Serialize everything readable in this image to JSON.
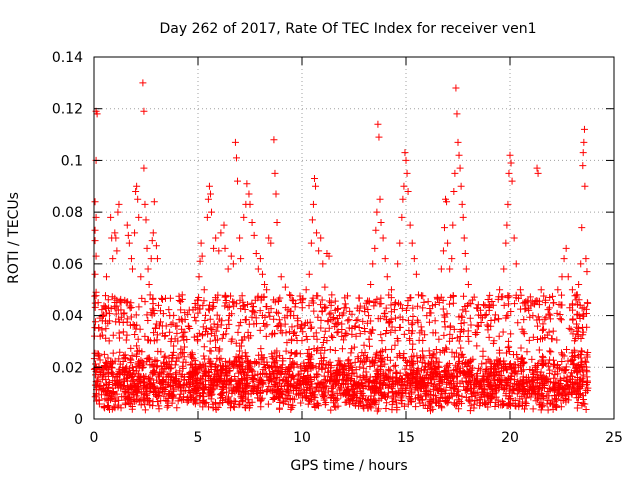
{
  "chart_data": {
    "type": "scatter",
    "title": "Day 262 of 2017, Rate Of TEC Index for receiver ven1",
    "xlabel": "GPS time / hours",
    "ylabel": "ROTI / TECUs",
    "xlim": [
      0,
      25
    ],
    "ylim": [
      0,
      0.14
    ],
    "xticks": [
      "0",
      "5",
      "10",
      "15",
      "20",
      "25"
    ],
    "yticks": [
      "0",
      "0.02",
      "0.04",
      "0.06",
      "0.08",
      "0.1",
      "0.12",
      "0.14"
    ],
    "grid": true,
    "marker": "plus",
    "color": "#ff0000",
    "x_data_range": [
      0,
      23.75
    ],
    "baseline_band": [
      0.003,
      0.03
    ],
    "series": [
      {
        "points": [
          [
            0.1,
            0.119
          ],
          [
            0.15,
            0.118
          ],
          [
            0.1,
            0.1
          ],
          [
            0.05,
            0.084
          ],
          [
            0.1,
            0.078
          ],
          [
            0.05,
            0.073
          ],
          [
            0.05,
            0.069
          ],
          [
            0.1,
            0.063
          ],
          [
            0.05,
            0.056
          ],
          [
            0.1,
            0.049
          ],
          [
            0.2,
            0.045
          ],
          [
            0.4,
            0.038
          ],
          [
            0.3,
            0.032
          ],
          [
            0.45,
            0.04
          ],
          [
            0.5,
            0.025
          ],
          [
            0.6,
            0.055
          ],
          [
            0.7,
            0.043
          ],
          [
            0.8,
            0.078
          ],
          [
            0.85,
            0.07
          ],
          [
            0.9,
            0.062
          ],
          [
            1.0,
            0.072
          ],
          [
            1.05,
            0.07
          ],
          [
            1.1,
            0.065
          ],
          [
            1.15,
            0.08
          ],
          [
            1.2,
            0.083
          ],
          [
            1.3,
            0.045
          ],
          [
            1.45,
            0.041
          ],
          [
            1.6,
            0.075
          ],
          [
            1.65,
            0.071
          ],
          [
            1.7,
            0.068
          ],
          [
            1.8,
            0.062
          ],
          [
            1.85,
            0.058
          ],
          [
            1.95,
            0.072
          ],
          [
            2.0,
            0.088
          ],
          [
            2.05,
            0.09
          ],
          [
            2.1,
            0.085
          ],
          [
            2.15,
            0.078
          ],
          [
            2.25,
            0.055
          ],
          [
            2.35,
            0.13
          ],
          [
            2.4,
            0.119
          ],
          [
            2.4,
            0.097
          ],
          [
            2.45,
            0.083
          ],
          [
            2.5,
            0.077
          ],
          [
            2.55,
            0.066
          ],
          [
            2.6,
            0.058
          ],
          [
            2.65,
            0.052
          ],
          [
            2.7,
            0.048
          ],
          [
            2.75,
            0.062
          ],
          [
            2.8,
            0.069
          ],
          [
            2.85,
            0.072
          ],
          [
            2.9,
            0.084
          ],
          [
            3.0,
            0.067
          ],
          [
            3.05,
            0.062
          ],
          [
            3.15,
            0.036
          ],
          [
            3.4,
            0.032
          ],
          [
            3.7,
            0.03
          ],
          [
            3.9,
            0.031
          ],
          [
            4.3,
            0.032
          ],
          [
            4.6,
            0.035
          ],
          [
            4.9,
            0.038
          ],
          [
            5.0,
            0.046
          ],
          [
            5.05,
            0.055
          ],
          [
            5.1,
            0.061
          ],
          [
            5.15,
            0.068
          ],
          [
            5.2,
            0.063
          ],
          [
            5.3,
            0.05
          ],
          [
            5.45,
            0.078
          ],
          [
            5.5,
            0.085
          ],
          [
            5.55,
            0.09
          ],
          [
            5.6,
            0.087
          ],
          [
            5.65,
            0.08
          ],
          [
            5.75,
            0.066
          ],
          [
            5.85,
            0.07
          ],
          [
            6.0,
            0.065
          ],
          [
            6.1,
            0.072
          ],
          [
            6.25,
            0.075
          ],
          [
            6.3,
            0.066
          ],
          [
            6.45,
            0.058
          ],
          [
            6.6,
            0.063
          ],
          [
            6.7,
            0.06
          ],
          [
            6.8,
            0.107
          ],
          [
            6.85,
            0.101
          ],
          [
            6.9,
            0.092
          ],
          [
            7.0,
            0.07
          ],
          [
            7.05,
            0.062
          ],
          [
            7.2,
            0.078
          ],
          [
            7.3,
            0.083
          ],
          [
            7.35,
            0.091
          ],
          [
            7.45,
            0.087
          ],
          [
            7.5,
            0.083
          ],
          [
            7.6,
            0.076
          ],
          [
            7.7,
            0.071
          ],
          [
            7.8,
            0.064
          ],
          [
            7.9,
            0.058
          ],
          [
            8.0,
            0.062
          ],
          [
            8.1,
            0.056
          ],
          [
            8.2,
            0.052
          ],
          [
            8.3,
            0.05
          ],
          [
            8.4,
            0.07
          ],
          [
            8.5,
            0.068
          ],
          [
            8.65,
            0.108
          ],
          [
            8.7,
            0.095
          ],
          [
            8.75,
            0.087
          ],
          [
            8.8,
            0.076
          ],
          [
            9.0,
            0.055
          ],
          [
            9.2,
            0.051
          ],
          [
            9.4,
            0.048
          ],
          [
            9.6,
            0.04
          ],
          [
            9.8,
            0.038
          ],
          [
            10.0,
            0.045
          ],
          [
            10.2,
            0.05
          ],
          [
            10.35,
            0.056
          ],
          [
            10.45,
            0.068
          ],
          [
            10.5,
            0.077
          ],
          [
            10.55,
            0.083
          ],
          [
            10.6,
            0.093
          ],
          [
            10.65,
            0.09
          ],
          [
            10.7,
            0.072
          ],
          [
            10.8,
            0.065
          ],
          [
            10.9,
            0.07
          ],
          [
            11.0,
            0.06
          ],
          [
            11.1,
            0.051
          ],
          [
            11.2,
            0.064
          ],
          [
            11.3,
            0.063
          ],
          [
            11.4,
            0.045
          ],
          [
            11.6,
            0.042
          ],
          [
            11.8,
            0.04
          ],
          [
            12.0,
            0.041
          ],
          [
            12.2,
            0.038
          ],
          [
            12.4,
            0.035
          ],
          [
            12.6,
            0.032
          ],
          [
            12.8,
            0.033
          ],
          [
            13.0,
            0.035
          ],
          [
            13.2,
            0.04
          ],
          [
            13.3,
            0.052
          ],
          [
            13.4,
            0.06
          ],
          [
            13.5,
            0.066
          ],
          [
            13.55,
            0.073
          ],
          [
            13.6,
            0.08
          ],
          [
            13.65,
            0.114
          ],
          [
            13.7,
            0.109
          ],
          [
            13.75,
            0.085
          ],
          [
            13.8,
            0.076
          ],
          [
            13.9,
            0.07
          ],
          [
            14.0,
            0.062
          ],
          [
            14.1,
            0.055
          ],
          [
            14.3,
            0.05
          ],
          [
            14.5,
            0.045
          ],
          [
            14.6,
            0.06
          ],
          [
            14.7,
            0.068
          ],
          [
            14.8,
            0.078
          ],
          [
            14.85,
            0.085
          ],
          [
            14.9,
            0.09
          ],
          [
            14.95,
            0.103
          ],
          [
            15.0,
            0.1
          ],
          [
            15.05,
            0.095
          ],
          [
            15.1,
            0.088
          ],
          [
            15.2,
            0.075
          ],
          [
            15.3,
            0.068
          ],
          [
            15.4,
            0.062
          ],
          [
            15.5,
            0.056
          ],
          [
            15.6,
            0.048
          ],
          [
            15.8,
            0.043
          ],
          [
            16.0,
            0.04
          ],
          [
            16.2,
            0.041
          ],
          [
            16.4,
            0.038
          ],
          [
            16.6,
            0.045
          ],
          [
            16.7,
            0.058
          ],
          [
            16.8,
            0.065
          ],
          [
            16.85,
            0.074
          ],
          [
            16.9,
            0.085
          ],
          [
            16.95,
            0.084
          ],
          [
            17.0,
            0.068
          ],
          [
            17.1,
            0.058
          ],
          [
            17.2,
            0.062
          ],
          [
            17.25,
            0.075
          ],
          [
            17.3,
            0.088
          ],
          [
            17.35,
            0.095
          ],
          [
            17.4,
            0.128
          ],
          [
            17.45,
            0.118
          ],
          [
            17.5,
            0.107
          ],
          [
            17.55,
            0.102
          ],
          [
            17.6,
            0.097
          ],
          [
            17.65,
            0.09
          ],
          [
            17.7,
            0.083
          ],
          [
            17.75,
            0.078
          ],
          [
            17.8,
            0.07
          ],
          [
            17.85,
            0.064
          ],
          [
            17.9,
            0.058
          ],
          [
            18.0,
            0.052
          ],
          [
            18.2,
            0.046
          ],
          [
            18.4,
            0.043
          ],
          [
            18.6,
            0.04
          ],
          [
            18.8,
            0.04
          ],
          [
            19.0,
            0.042
          ],
          [
            19.2,
            0.044
          ],
          [
            19.5,
            0.05
          ],
          [
            19.7,
            0.058
          ],
          [
            19.8,
            0.068
          ],
          [
            19.85,
            0.075
          ],
          [
            19.9,
            0.083
          ],
          [
            19.95,
            0.095
          ],
          [
            20.0,
            0.102
          ],
          [
            20.05,
            0.099
          ],
          [
            20.1,
            0.092
          ],
          [
            20.2,
            0.07
          ],
          [
            20.3,
            0.06
          ],
          [
            20.5,
            0.05
          ],
          [
            20.7,
            0.045
          ],
          [
            20.9,
            0.042
          ],
          [
            21.1,
            0.04
          ],
          [
            21.3,
            0.097
          ],
          [
            21.35,
            0.095
          ],
          [
            21.5,
            0.05
          ],
          [
            21.7,
            0.045
          ],
          [
            21.9,
            0.043
          ],
          [
            22.1,
            0.045
          ],
          [
            22.3,
            0.05
          ],
          [
            22.5,
            0.055
          ],
          [
            22.6,
            0.062
          ],
          [
            22.7,
            0.066
          ],
          [
            22.8,
            0.055
          ],
          [
            23.0,
            0.05
          ],
          [
            23.2,
            0.048
          ],
          [
            23.3,
            0.052
          ],
          [
            23.4,
            0.06
          ],
          [
            23.45,
            0.074
          ],
          [
            23.5,
            0.098
          ],
          [
            23.52,
            0.103
          ],
          [
            23.55,
            0.107
          ],
          [
            23.58,
            0.112
          ],
          [
            23.6,
            0.09
          ],
          [
            23.65,
            0.062
          ],
          [
            23.7,
            0.057
          ],
          [
            23.72,
            0.045
          ]
        ]
      }
    ]
  }
}
